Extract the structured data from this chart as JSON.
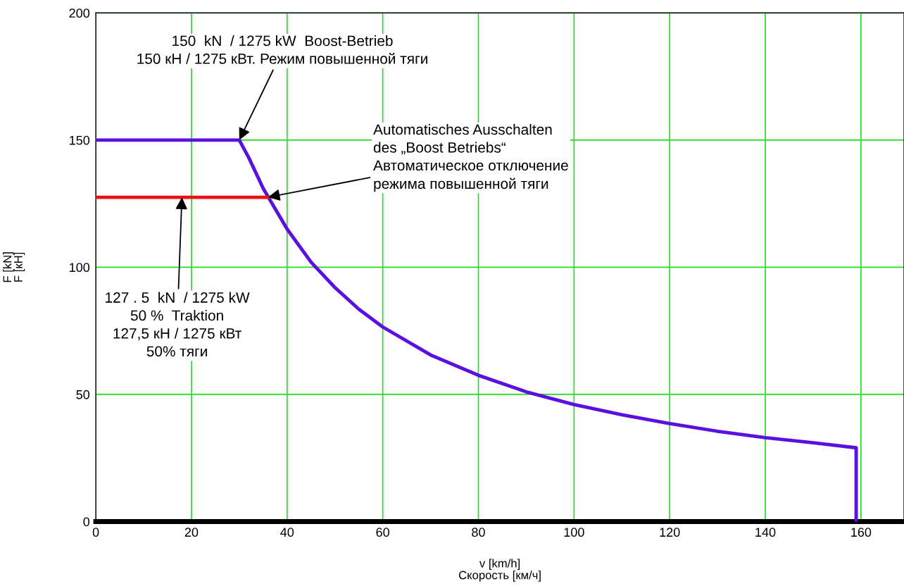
{
  "chart_data": {
    "type": "line",
    "xlabel": "v [km/h]\nСкорость [км/ч]",
    "ylabel": "F [kN]\nF [кН]",
    "series": [
      {
        "color": "#5a10e0",
        "x": [
          0,
          30,
          32,
          35,
          40,
          45,
          50,
          55,
          60,
          70,
          80,
          90,
          100,
          110,
          120,
          130,
          140,
          150,
          159,
          159
        ],
        "values": [
          150,
          150,
          143,
          131,
          115,
          102,
          92,
          83.5,
          76.5,
          65.5,
          57.5,
          51,
          46,
          42,
          38.5,
          35.5,
          33,
          31,
          29,
          0
        ]
      },
      {
        "color": "#ee1111",
        "x": [
          0,
          36
        ],
        "values": [
          127.5,
          127.5
        ]
      }
    ],
    "annotations": [
      {
        "text": "150  kN  / 1275 kW  Boost-Betrieb\n150 кН / 1275 кВт. Режим повышенной тяги",
        "x": 30,
        "y": 150
      },
      {
        "text": "Automatisches Ausschalten\ndes „Boost Betriebs“\nАвтоматическое отключение\nрежима повышенной тяги",
        "x": 36,
        "y": 127.5
      },
      {
        "text": "127 . 5  kN  / 1275 kW\n50 %  Traktion\n127,5 кН / 1275 кВт\n50% тяги",
        "x": 18,
        "y": 127.5
      }
    ],
    "xlim": [
      0,
      169
    ],
    "xticks": [
      0,
      20,
      40,
      60,
      80,
      100,
      120,
      140,
      160
    ],
    "ylim": [
      0,
      200
    ],
    "yticks": [
      0,
      50,
      100,
      150,
      200
    ],
    "grid": true,
    "legend": false
  }
}
